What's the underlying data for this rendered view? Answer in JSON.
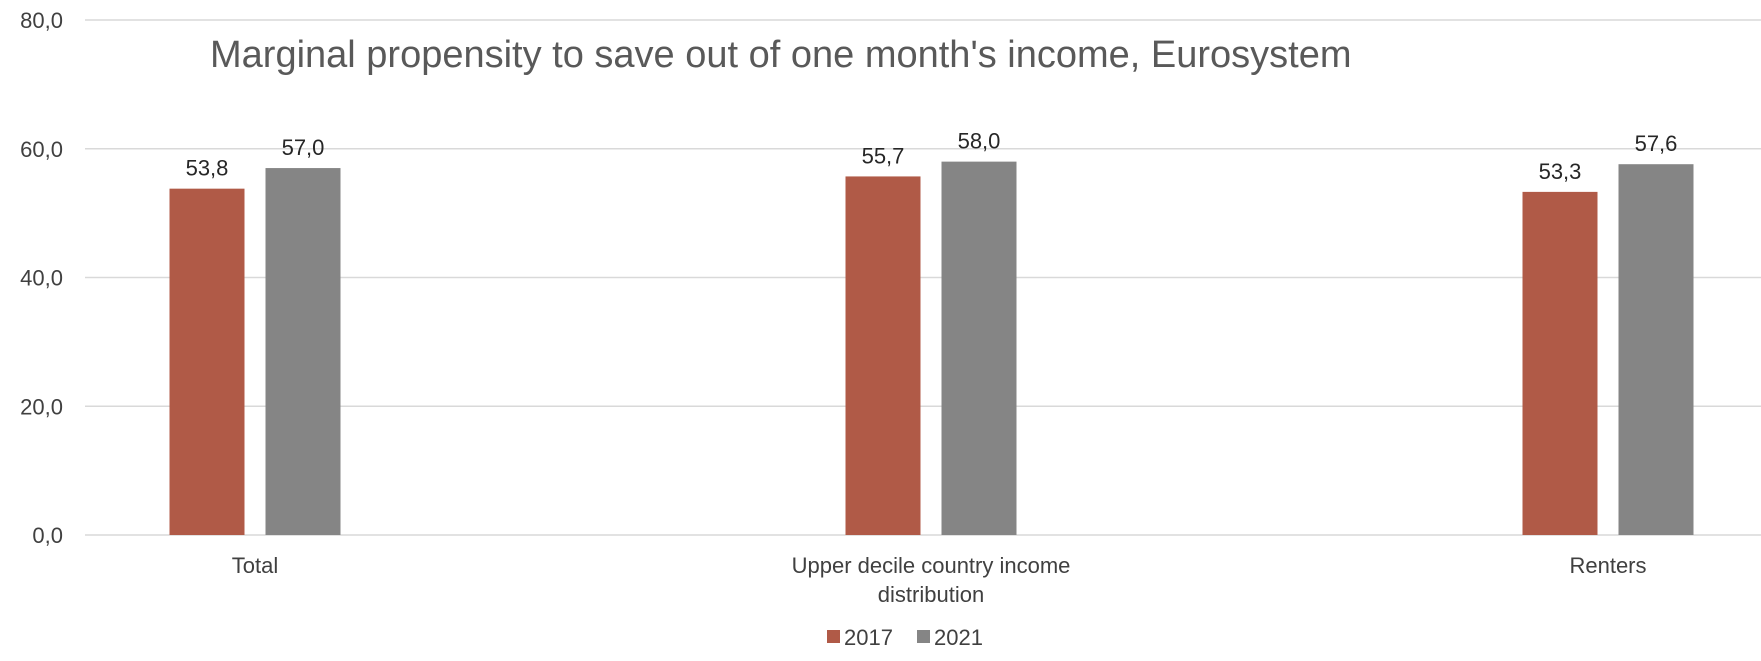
{
  "chart_data": {
    "type": "bar",
    "title": "Marginal propensity to save out of one month's income, Eurosystem",
    "xlabel": "",
    "ylabel": "",
    "ylim": [
      0,
      80
    ],
    "yticks": [
      "0,0",
      "20,0",
      "40,0",
      "60,0",
      "80,0"
    ],
    "ytick_values": [
      0,
      20,
      40,
      60,
      80
    ],
    "categories": [
      [
        "Total"
      ],
      [
        "Upper decile country income",
        "distribution"
      ],
      [
        "Renters"
      ]
    ],
    "series": [
      {
        "name": "2017",
        "color": "#b05a47",
        "values": [
          53.8,
          55.7,
          53.3
        ],
        "labels": [
          "53,8",
          "55,7",
          "53,3"
        ]
      },
      {
        "name": "2021",
        "color": "#858585",
        "values": [
          57.0,
          58.0,
          57.6
        ],
        "labels": [
          "57,0",
          "58,0",
          "57,6"
        ]
      }
    ],
    "grid": true,
    "legend_position": "bottom-center"
  }
}
